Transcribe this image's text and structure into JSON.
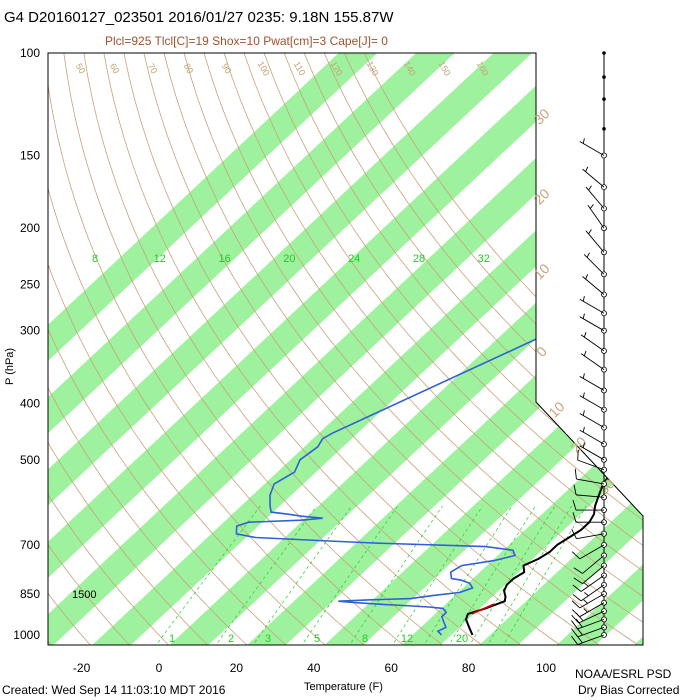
{
  "header": {
    "title": "G4 D20160127_023501 2016/01/27 0235:  9.18N 155.87W",
    "subtitle": "Plcl=925 Tlcl[C]=19 Shox=10 Pwat[cm]=3 Cape[J]= 0"
  },
  "footer": {
    "created": "Created: Wed Sep 14 11:03:10 MDT 2016",
    "credit_line1": "NOAA/ESRL PSD",
    "credit_line2": "Dry Bias Corrected"
  },
  "colors": {
    "temperature": "#000000",
    "dewpoint": "#3060d8",
    "band": "#9ef29e",
    "adiabat": "#c8a27a",
    "mixing": "#22cc22",
    "parcel": "#cc0000"
  },
  "chart_data": {
    "type": "line",
    "xlabel": "Temperature (F)",
    "ylabel": "P (hPa)",
    "xlim": [
      -30,
      110
    ],
    "x_ticks": [
      "-20",
      "0",
      "20",
      "40",
      "60",
      "80",
      "100"
    ],
    "x_tick_values": [
      -20,
      0,
      20,
      40,
      60,
      80,
      100
    ],
    "p_ticks": [
      "100",
      "150",
      "200",
      "250",
      "300",
      "400",
      "500",
      "700",
      "850",
      "1000"
    ],
    "p_tick_values": [
      100,
      150,
      200,
      250,
      300,
      400,
      500,
      700,
      850,
      1000
    ],
    "mixing_ratio_labels": [
      "8",
      "12",
      "16",
      "20",
      "24",
      "28",
      "32"
    ],
    "mixing_ratio_label_values": [
      8,
      12,
      16,
      20,
      24,
      28,
      32
    ],
    "lower_mixing_labels": [
      "1",
      "2",
      "3",
      "5",
      "8",
      "12",
      "20"
    ],
    "lower_mixing_label_values": [
      1,
      2,
      3,
      5,
      8,
      12,
      20
    ],
    "theta_labels": [
      "50",
      "60",
      "70",
      "80",
      "90",
      "100",
      "110",
      "120",
      "130",
      "140",
      "150",
      "160"
    ],
    "theta_label_values": [
      50,
      60,
      70,
      80,
      90,
      100,
      110,
      120,
      130,
      140,
      150,
      160
    ],
    "big_labels": [
      "30",
      "20",
      "10",
      "0",
      "10",
      "20",
      "30"
    ],
    "height_label": "1500",
    "series": [
      {
        "name": "temperature",
        "points": [
          [
            81,
            1000
          ],
          [
            78,
            970
          ],
          [
            75,
            940
          ],
          [
            74,
            920
          ],
          [
            77,
            900
          ],
          [
            80,
            875
          ],
          [
            79,
            860
          ],
          [
            77,
            840
          ],
          [
            76,
            820
          ],
          [
            76,
            800
          ],
          [
            77,
            780
          ],
          [
            75,
            760
          ],
          [
            77,
            740
          ],
          [
            78,
            720
          ],
          [
            78,
            700
          ],
          [
            79,
            680
          ],
          [
            80,
            660
          ],
          [
            80,
            640
          ],
          [
            79,
            620
          ],
          [
            77,
            600
          ],
          [
            75,
            575
          ],
          [
            73,
            550
          ],
          [
            72,
            525
          ],
          [
            70,
            500
          ],
          [
            69,
            475
          ],
          [
            67,
            450
          ],
          [
            66,
            425
          ],
          [
            65,
            400
          ],
          [
            63,
            375
          ],
          [
            61,
            350
          ],
          [
            57,
            325
          ],
          [
            53,
            300
          ],
          [
            46,
            275
          ],
          [
            39,
            250
          ],
          [
            32,
            225
          ],
          [
            25,
            200
          ],
          [
            20,
            180
          ],
          [
            14,
            165
          ]
        ]
      },
      {
        "name": "dewpoint",
        "points": [
          [
            73,
            1000
          ],
          [
            71,
            985
          ],
          [
            72,
            970
          ],
          [
            70,
            950
          ],
          [
            68,
            930
          ],
          [
            68,
            915
          ],
          [
            66,
            900
          ],
          [
            62,
            895
          ],
          [
            55,
            890
          ],
          [
            48,
            885
          ],
          [
            42,
            880
          ],
          [
            37,
            875
          ],
          [
            45,
            870
          ],
          [
            55,
            866
          ],
          [
            60,
            855
          ],
          [
            66,
            845
          ],
          [
            68,
            830
          ],
          [
            66,
            815
          ],
          [
            63,
            805
          ],
          [
            60,
            800
          ],
          [
            58,
            780
          ],
          [
            59,
            760
          ],
          [
            66,
            745
          ],
          [
            70,
            730
          ],
          [
            68,
            715
          ],
          [
            60,
            705
          ],
          [
            30,
            695
          ],
          [
            15,
            688
          ],
          [
            -2,
            680
          ],
          [
            -8,
            670
          ],
          [
            -9,
            660
          ],
          [
            -10,
            650
          ],
          [
            -8,
            640
          ],
          [
            5,
            635
          ],
          [
            10,
            630
          ],
          [
            4,
            625
          ],
          [
            0,
            620
          ],
          [
            -5,
            615
          ],
          [
            -7,
            600
          ],
          [
            -10,
            575
          ],
          [
            -12,
            550
          ],
          [
            -10,
            525
          ],
          [
            -12,
            500
          ],
          [
            -11,
            475
          ],
          [
            -12,
            460
          ],
          [
            -11,
            450
          ],
          [
            18,
            300
          ],
          [
            38,
            285
          ],
          [
            40,
            270
          ],
          [
            36,
            255
          ],
          [
            33,
            245
          ],
          [
            31,
            235
          ],
          [
            25,
            200
          ],
          [
            18,
            185
          ]
        ]
      }
    ],
    "parcel_segment": [
      [
        75,
        920
      ],
      [
        78,
        885
      ]
    ],
    "wind_profile": [
      {
        "p": 1000,
        "dir": 250,
        "spd": 20
      },
      {
        "p": 970,
        "dir": 250,
        "spd": 20
      },
      {
        "p": 940,
        "dir": 250,
        "spd": 20
      },
      {
        "p": 910,
        "dir": 245,
        "spd": 20
      },
      {
        "p": 880,
        "dir": 240,
        "spd": 15
      },
      {
        "p": 850,
        "dir": 240,
        "spd": 15
      },
      {
        "p": 820,
        "dir": 235,
        "spd": 15
      },
      {
        "p": 790,
        "dir": 235,
        "spd": 15
      },
      {
        "p": 760,
        "dir": 230,
        "spd": 10
      },
      {
        "p": 730,
        "dir": 230,
        "spd": 10
      },
      {
        "p": 700,
        "dir": 240,
        "spd": 10
      },
      {
        "p": 670,
        "dir": 260,
        "spd": 10
      },
      {
        "p": 640,
        "dir": 270,
        "spd": 10
      },
      {
        "p": 610,
        "dir": 270,
        "spd": 10
      },
      {
        "p": 580,
        "dir": 275,
        "spd": 10
      },
      {
        "p": 550,
        "dir": 280,
        "spd": 10
      },
      {
        "p": 520,
        "dir": 290,
        "spd": 10
      },
      {
        "p": 500,
        "dir": 300,
        "spd": 5
      },
      {
        "p": 470,
        "dir": 300,
        "spd": 5
      },
      {
        "p": 440,
        "dir": 300,
        "spd": 5
      },
      {
        "p": 410,
        "dir": 300,
        "spd": 5
      },
      {
        "p": 380,
        "dir": 300,
        "spd": 5
      },
      {
        "p": 350,
        "dir": 305,
        "spd": 5
      },
      {
        "p": 325,
        "dir": 305,
        "spd": 5
      },
      {
        "p": 300,
        "dir": 300,
        "spd": 5
      },
      {
        "p": 280,
        "dir": 300,
        "spd": 5
      },
      {
        "p": 260,
        "dir": 310,
        "spd": 5
      },
      {
        "p": 240,
        "dir": 315,
        "spd": 5
      },
      {
        "p": 220,
        "dir": 320,
        "spd": 5
      },
      {
        "p": 200,
        "dir": 325,
        "spd": 5
      },
      {
        "p": 185,
        "dir": 320,
        "spd": 5
      },
      {
        "p": 170,
        "dir": 310,
        "spd": 5
      },
      {
        "p": 150,
        "dir": 300,
        "spd": 5
      },
      {
        "p": 135,
        "dir": 0,
        "spd": 0
      },
      {
        "p": 120,
        "dir": 0,
        "spd": 0
      },
      {
        "p": 110,
        "dir": 0,
        "spd": 0
      },
      {
        "p": 100,
        "dir": 0,
        "spd": 0
      }
    ]
  }
}
